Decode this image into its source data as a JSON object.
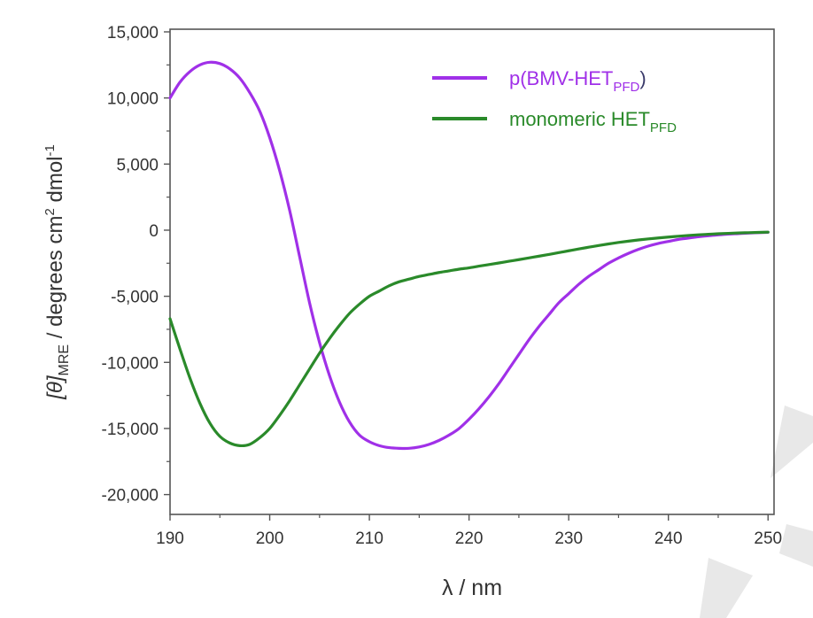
{
  "chart_data": {
    "type": "line",
    "title": "",
    "xlabel": "λ / nm",
    "ylabel": {
      "main": "[θ]",
      "main_sub": "MRE",
      "rest": " / degrees cm",
      "rest_sup": "2",
      "tail": " dmol",
      "tail_sup": "-1"
    },
    "xlim": [
      190,
      250.6
    ],
    "ylim": [
      -21500,
      15200
    ],
    "x_ticks": [
      190,
      200,
      210,
      220,
      230,
      240,
      250
    ],
    "x_tick_labels": [
      "190",
      "200",
      "210",
      "220",
      "230",
      "240",
      "250"
    ],
    "y_ticks": [
      15000,
      10000,
      5000,
      0,
      -5000,
      -10000,
      -15000,
      -20000
    ],
    "y_tick_labels": [
      "15,000",
      "10,000",
      "5,000",
      "0",
      "-5,000",
      "-10,000",
      "-15,000",
      "-20,000"
    ],
    "grid": false,
    "legend_position": "top-right",
    "series": [
      {
        "name": "p(BMV-HET",
        "name_sub": "PFD",
        "name_suffix": ")",
        "color": "#a030e8",
        "x": [
          190,
          191,
          192,
          193,
          194,
          195,
          196,
          197,
          198,
          199,
          200,
          201,
          202,
          203,
          204,
          205,
          206,
          207,
          208,
          209,
          210,
          211,
          212,
          213,
          214,
          215,
          216,
          217,
          218,
          219,
          220,
          221,
          222,
          223,
          224,
          225,
          226,
          227,
          228,
          229,
          230,
          231,
          232,
          233,
          234,
          235,
          236,
          237,
          238,
          239,
          240,
          241,
          242,
          243,
          244,
          245,
          246,
          247,
          248,
          249,
          250
        ],
        "values": [
          10000,
          11200,
          12000,
          12500,
          12700,
          12600,
          12200,
          11500,
          10400,
          9000,
          7000,
          4500,
          1500,
          -2000,
          -5500,
          -8500,
          -11000,
          -13000,
          -14500,
          -15500,
          -16000,
          -16300,
          -16450,
          -16500,
          -16500,
          -16400,
          -16200,
          -15900,
          -15500,
          -15000,
          -14300,
          -13500,
          -12600,
          -11600,
          -10500,
          -9400,
          -8300,
          -7300,
          -6400,
          -5500,
          -4800,
          -4100,
          -3500,
          -3000,
          -2500,
          -2100,
          -1750,
          -1450,
          -1200,
          -1000,
          -850,
          -700,
          -600,
          -500,
          -420,
          -360,
          -300,
          -260,
          -220,
          -190,
          -160
        ]
      },
      {
        "name": "monomeric HET",
        "name_sub": "PFD",
        "name_suffix": "",
        "color": "#2a8a2a",
        "x": [
          190,
          191,
          192,
          193,
          194,
          195,
          196,
          197,
          198,
          199,
          200,
          201,
          202,
          203,
          204,
          205,
          206,
          207,
          208,
          209,
          210,
          211,
          212,
          213,
          214,
          215,
          216,
          217,
          218,
          219,
          220,
          221,
          222,
          223,
          224,
          225,
          226,
          227,
          228,
          229,
          230,
          231,
          232,
          233,
          234,
          235,
          236,
          237,
          238,
          239,
          240,
          241,
          242,
          243,
          244,
          245,
          246,
          247,
          248,
          249,
          250
        ],
        "values": [
          -6700,
          -9000,
          -11200,
          -13100,
          -14600,
          -15600,
          -16100,
          -16300,
          -16200,
          -15700,
          -15000,
          -14000,
          -12900,
          -11700,
          -10500,
          -9300,
          -8200,
          -7200,
          -6300,
          -5600,
          -5000,
          -4600,
          -4200,
          -3900,
          -3700,
          -3500,
          -3350,
          -3200,
          -3080,
          -2950,
          -2850,
          -2720,
          -2600,
          -2480,
          -2350,
          -2230,
          -2100,
          -1970,
          -1840,
          -1700,
          -1560,
          -1420,
          -1290,
          -1160,
          -1040,
          -930,
          -830,
          -740,
          -660,
          -590,
          -520,
          -460,
          -400,
          -350,
          -310,
          -270,
          -240,
          -210,
          -190,
          -170,
          -150
        ]
      }
    ]
  }
}
